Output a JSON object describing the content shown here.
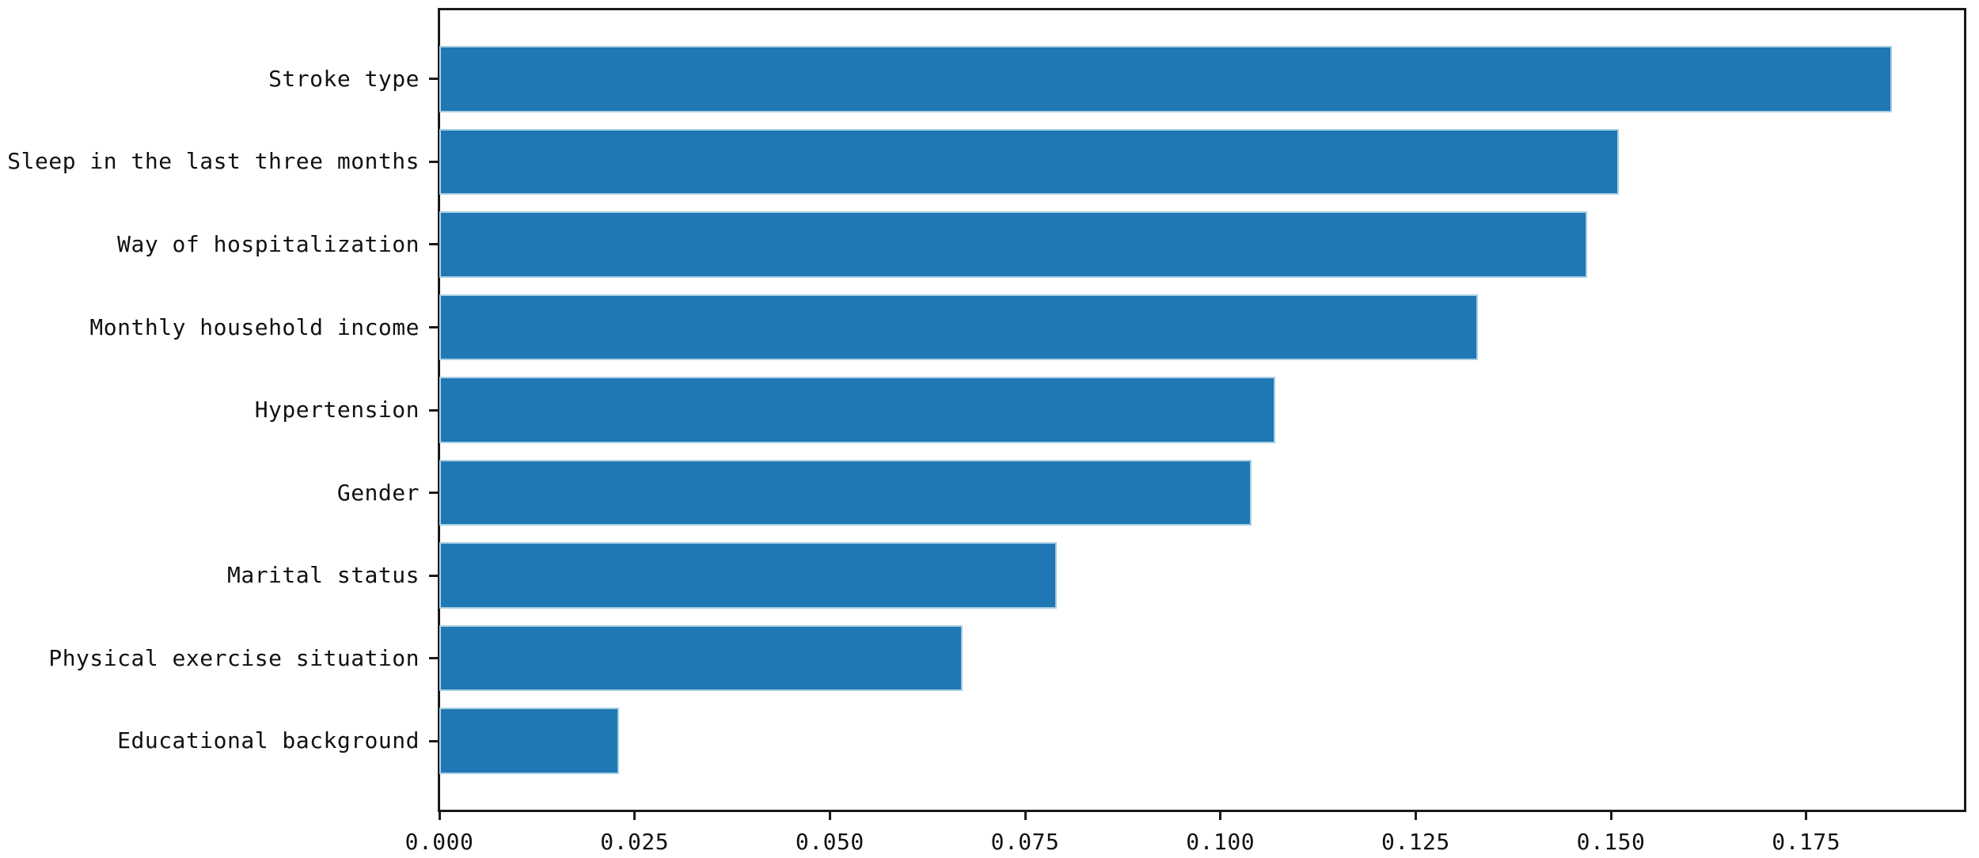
{
  "chart_data": {
    "type": "bar",
    "orientation": "horizontal",
    "title": "",
    "xlabel": "",
    "ylabel": "",
    "categories": [
      "Stroke type",
      "Sleep in the last three months",
      "Way of hospitalization",
      "Monthly household income",
      "Hypertension",
      "Gender",
      "Marital status",
      "Physical exercise situation",
      "Educational background"
    ],
    "values": [
      0.186,
      0.151,
      0.147,
      0.133,
      0.107,
      0.104,
      0.079,
      0.067,
      0.023
    ],
    "xlim": [
      0.0,
      0.1953
    ],
    "xticks": [
      0.0,
      0.025,
      0.05,
      0.075,
      0.1,
      0.125,
      0.15,
      0.175
    ],
    "xtick_labels": [
      "0.000",
      "0.025",
      "0.050",
      "0.075",
      "0.100",
      "0.125",
      "0.150",
      "0.175"
    ],
    "grid": false,
    "legend": null,
    "bar_color": "#1f77b4",
    "bar_edge_color": "#a6cee3",
    "spine_color": "#1a1a1a",
    "text_color": "#111111"
  }
}
